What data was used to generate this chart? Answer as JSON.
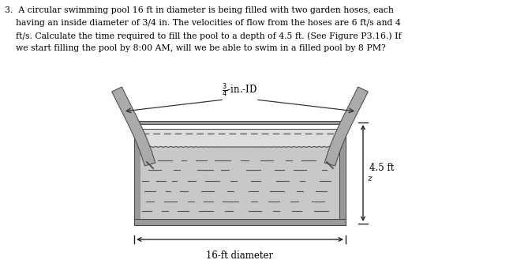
{
  "text_line1": "3.  A circular swimming pool 16 ft in diameter is being filled with two garden hoses, each",
  "text_line2": "    having an inside diameter of 3/4 in. The velocities of flow from the hoses are 6 ft/s and 4",
  "text_line3": "    ft/s. Calculate the time required to fill the pool to a depth of 4.5 ft. (See Figure P3.16.) If",
  "text_line4": "    we start filling the pool by 8:00 AM, will we be able to swim in a filled pool by 8 PM?",
  "label_id": "$\\frac{3}{4}$-in.-ID",
  "label_diameter": "16-ft diameter",
  "label_depth": "4.5 ft",
  "label_z": "z",
  "bg_color": "#ffffff",
  "text_color": "#000000",
  "wall_color": "#999999",
  "wall_edge": "#444444",
  "water_color": "#bbbbbb",
  "hose_color": "#aaaaaa",
  "hose_edge": "#444444",
  "dim_color": "#222222",
  "dash_color": "#555555",
  "fig_width": 6.5,
  "fig_height": 3.29,
  "dpi": 100
}
